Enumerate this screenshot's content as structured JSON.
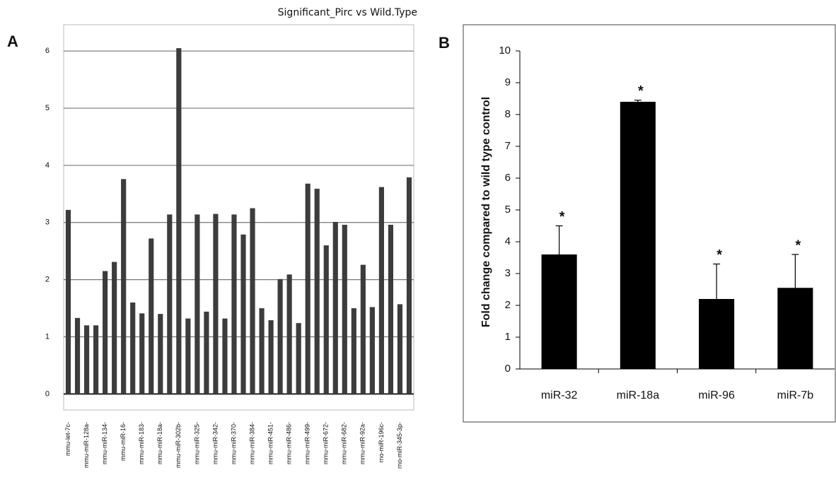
{
  "chart_data": [
    {
      "type": "bar",
      "panel": "A",
      "title": "Significant_Pirc vs Wild.Type",
      "categories": [
        "mmu-let-7c-",
        null,
        "mmu-miR-128a-",
        null,
        "mmu-miR-134-",
        null,
        "mmu-miR-16-",
        null,
        "mmu-miR-183-",
        null,
        "mmu-miR-18a-",
        null,
        "mmu-miR-302b-",
        null,
        "mmu-miR-325-",
        null,
        "mmu-miR-342-",
        null,
        "mmu-miR-370-",
        null,
        "mmu-miR-384-",
        null,
        "mmu-miR-451-",
        null,
        "mmu-miR-486-",
        null,
        "mmu-miR-499-",
        null,
        "mmu-miR-672-",
        null,
        "mmu-miR-682-",
        null,
        "mmu-miR-92a-",
        null,
        "rno-miR-196c-",
        null,
        "rno-miR-345-3p-",
        null
      ],
      "values": [
        3.22,
        1.33,
        1.2,
        1.2,
        2.15,
        2.31,
        3.76,
        1.6,
        1.41,
        2.72,
        1.4,
        3.14,
        6.05,
        1.32,
        3.14,
        1.44,
        3.15,
        1.32,
        3.14,
        2.79,
        3.25,
        1.5,
        1.29,
        2.01,
        2.09,
        1.24,
        3.68,
        3.59,
        2.6,
        3.01,
        2.96,
        1.5,
        2.26,
        1.52,
        3.62,
        2.96,
        1.57,
        3.79
      ],
      "color": "#3c3c3c",
      "ylim": [
        -0.28,
        6.46
      ],
      "yticks": [
        0,
        1,
        2,
        3,
        4,
        5,
        6
      ],
      "grid": true
    },
    {
      "type": "bar",
      "panel": "B",
      "ylabel": "Fold change compared to wild type control",
      "categories": [
        "miR-32",
        "miR-18a",
        "miR-96",
        "miR-7b"
      ],
      "values": [
        3.6,
        8.4,
        2.2,
        2.55
      ],
      "errors": [
        0.9,
        0.05,
        1.1,
        1.05
      ],
      "annotations": [
        "*",
        "*",
        "*",
        "*"
      ],
      "color": "#000000",
      "ylim": [
        0,
        10
      ],
      "yticks": [
        0,
        1,
        2,
        3,
        4,
        5,
        6,
        7,
        8,
        9,
        10
      ],
      "grid": false
    }
  ]
}
